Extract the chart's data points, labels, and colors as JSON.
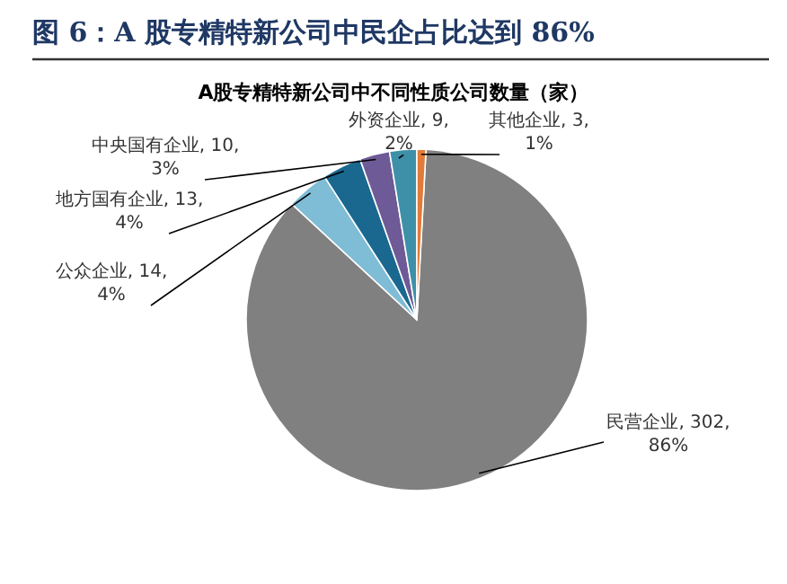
{
  "chart_data": {
    "type": "pie",
    "title": "图 6：A 股专精特新公司中民企占比达到 86%",
    "subtitle": "A股专精特新公司中不同性质公司数量（家）",
    "categories": [
      "民营企业",
      "公众企业",
      "地方国有企业",
      "中央国有企业",
      "外资企业",
      "其他企业"
    ],
    "values": [
      302,
      14,
      13,
      10,
      9,
      3
    ],
    "value_labels": [
      "302, 86%",
      "14, 4%",
      "13, 4%",
      "10, 3%",
      "9, 2%",
      "3, 1%"
    ],
    "colors": [
      "#808080",
      "#7fbcd6",
      "#1a6890",
      "#6e5a96",
      "#3e90a8",
      "#e07b39"
    ],
    "legend": false
  }
}
